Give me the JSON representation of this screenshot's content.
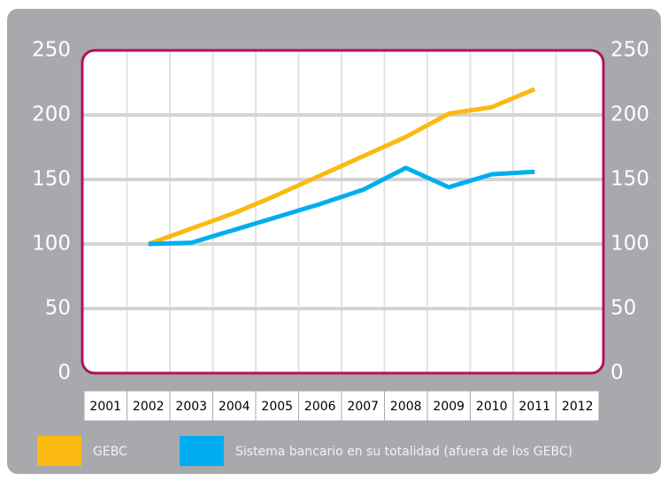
{
  "chart_data": {
    "type": "line",
    "categories": [
      "2001",
      "2002",
      "2003",
      "2004",
      "2005",
      "2006",
      "2007",
      "2008",
      "2009",
      "2010",
      "2011",
      "2012"
    ],
    "series": [
      {
        "name": "GEBC",
        "color": "#fbba12",
        "values": [
          null,
          100,
          112,
          124,
          138,
          153,
          168,
          183,
          201,
          206,
          220,
          null
        ]
      },
      {
        "name": "Sistema bancario en su totalidad (afuera de los GEBC)",
        "color": "#00aeef",
        "values": [
          null,
          100,
          101,
          111,
          121,
          131,
          142,
          159,
          144,
          154,
          156,
          null
        ]
      }
    ],
    "ylim": [
      0,
      250
    ],
    "yticks": [
      0,
      50,
      100,
      150,
      200,
      250
    ],
    "grid": true
  }
}
